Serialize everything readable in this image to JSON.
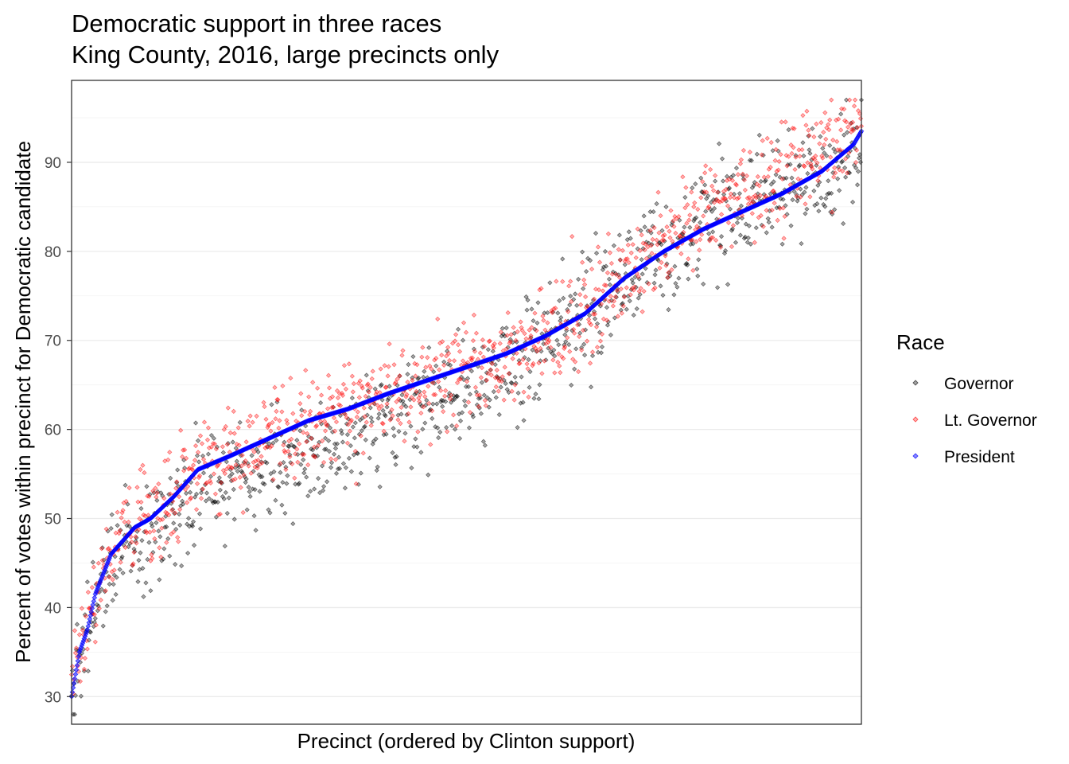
{
  "chart_data": {
    "type": "scatter",
    "title": "Democratic support in three races",
    "subtitle": "King County, 2016, large precincts only",
    "xlabel": "Precinct (ordered by Clinton support)",
    "ylabel": "Percent of votes within precinct for Democratic candidate",
    "xlim": [
      0,
      1
    ],
    "ylim": [
      26.9,
      99.2
    ],
    "y_ticks": [
      30,
      40,
      50,
      60,
      70,
      80,
      90
    ],
    "x_ticks": [],
    "grid": "horizontal",
    "legend": {
      "title": "Race",
      "placement": "right",
      "entries": [
        "Governor",
        "Lt. Governor",
        "President"
      ]
    },
    "series": [
      {
        "name": "President",
        "color": "#0000FF",
        "x_range": [
          0,
          1
        ],
        "curve": [
          [
            0.0,
            30.0
          ],
          [
            0.01,
            35.0
          ],
          [
            0.02,
            37.5
          ],
          [
            0.03,
            41.5
          ],
          [
            0.05,
            46.0
          ],
          [
            0.08,
            49.0
          ],
          [
            0.1,
            50.0
          ],
          [
            0.13,
            52.5
          ],
          [
            0.16,
            55.5
          ],
          [
            0.2,
            57.0
          ],
          [
            0.25,
            59.0
          ],
          [
            0.3,
            61.0
          ],
          [
            0.35,
            62.3
          ],
          [
            0.4,
            64.0
          ],
          [
            0.45,
            65.5
          ],
          [
            0.5,
            67.0
          ],
          [
            0.55,
            68.5
          ],
          [
            0.6,
            70.5
          ],
          [
            0.65,
            73.0
          ],
          [
            0.7,
            77.0
          ],
          [
            0.75,
            80.0
          ],
          [
            0.8,
            82.5
          ],
          [
            0.85,
            84.5
          ],
          [
            0.9,
            86.5
          ],
          [
            0.95,
            89.0
          ],
          [
            0.99,
            92.0
          ],
          [
            1.0,
            93.5
          ]
        ]
      },
      {
        "name": "Lt. Governor",
        "color": "#FF0000",
        "offset_vs_president": [
          [
            0.0,
            0.5
          ],
          [
            0.3,
            0.0
          ],
          [
            0.5,
            -0.3
          ],
          [
            0.7,
            0.3
          ],
          [
            0.85,
            2.5
          ],
          [
            1.0,
            2.0
          ]
        ],
        "spread": 2.7
      },
      {
        "name": "Governor",
        "color": "#000000",
        "offset_vs_president": [
          [
            0.0,
            0.0
          ],
          [
            0.2,
            -3.0
          ],
          [
            0.35,
            -3.5
          ],
          [
            0.5,
            -2.5
          ],
          [
            0.65,
            0.0
          ],
          [
            0.8,
            0.5
          ],
          [
            0.9,
            0.3
          ],
          [
            1.0,
            -2.0
          ]
        ],
        "spread": 3.0
      }
    ],
    "points_per_series": 1000
  }
}
